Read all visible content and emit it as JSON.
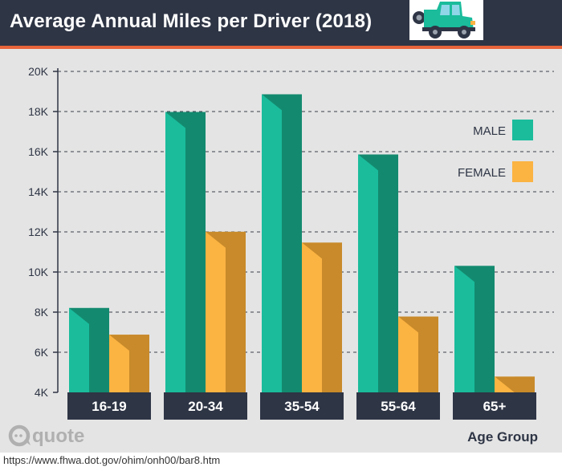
{
  "header": {
    "title": "Average Annual Miles per Driver (2018)",
    "icon": "jeep-icon"
  },
  "brand": {
    "logo_text": "quote",
    "logo_icon": "q-speech-bubble-icon"
  },
  "source": "https://www.fhwa.dot.gov/ohim/onh00/bar8.htm",
  "colors": {
    "header_bg": "#2e3545",
    "accent_stripe": "#e8643a",
    "chart_bg": "#e4e4e4",
    "male": "#1abc9c",
    "male_dark": "#138a6f",
    "female": "#fbb342",
    "female_dark": "#c88a2a",
    "label_bg": "#2e3545",
    "text_dark": "#2e3545"
  },
  "chart_data": {
    "type": "bar",
    "title": "Average Annual Miles per Driver (2018)",
    "xlabel": "Age Group",
    "ylabel": "",
    "categories": [
      "16-19",
      "20-34",
      "35-54",
      "55-64",
      "65+"
    ],
    "series": [
      {
        "name": "MALE",
        "values": [
          8206,
          17976,
          18858,
          15859,
          10304
        ]
      },
      {
        "name": "FEMALE",
        "values": [
          6873,
          12004,
          11464,
          7780,
          4785
        ]
      }
    ],
    "ylim": [
      4000,
      20000
    ],
    "yticks": [
      4000,
      6000,
      8000,
      10000,
      12000,
      14000,
      16000,
      18000,
      20000
    ],
    "ytick_labels": [
      "4K",
      "6K",
      "8K",
      "10K",
      "12K",
      "14K",
      "16K",
      "18K",
      "20K"
    ],
    "grid": "dashed horizontal",
    "legend": "right"
  }
}
